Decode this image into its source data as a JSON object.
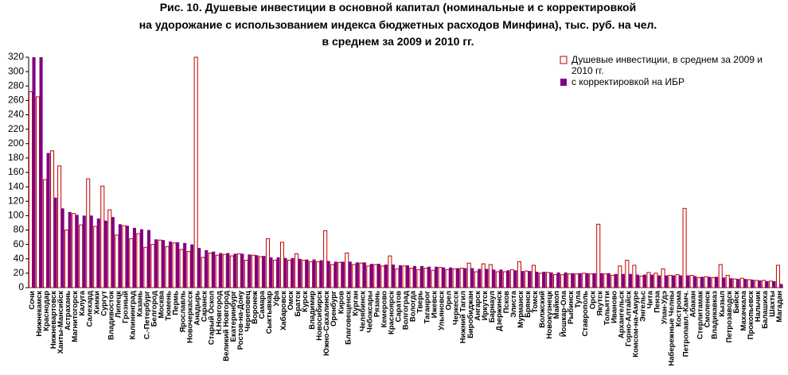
{
  "chart_data": {
    "type": "bar",
    "title": [
      "Рис. 10. Душевые инвестиции в основной капитал (номинальные и с корректировкой",
      "на удорожание с использованием индекса бюджетных расходов Минфина), тыс. руб. на чел.",
      "в среднем за 2009 и 2010 гг."
    ],
    "categories": [
      "Сочи",
      "Нижнекамск",
      "Краснодар",
      "Нижневартовск",
      "Ханты-Мансийск",
      "Астрахань",
      "Магнитогорск",
      "Калуга",
      "Салехард",
      "Химки",
      "Сургут",
      "Владивосток",
      "Липецк",
      "Грозный",
      "Калининград",
      "Казань",
      "С.-Петербург",
      "Белгород",
      "Москва",
      "Тюмень",
      "Пермь",
      "Ярославль",
      "Новочеркасск",
      "Анадырь",
      "Саранск",
      "Старый Оскол",
      "Н.Новгород",
      "Великий Новгород",
      "Екатеринбург",
      "Ростов-на-Дону",
      "Череповец",
      "Воронеж",
      "Самара",
      "Сыктывкар",
      "Уфа",
      "Хабаровск",
      "Омск",
      "Братск",
      "Курск",
      "Владимир",
      "Новосибирск",
      "Южно-Сахалинск",
      "Оренбург",
      "Киров",
      "Благовещенск",
      "Курган",
      "Челябинск",
      "Чебоксары",
      "Рязань",
      "Кемерово",
      "Красноярск",
      "Саратов",
      "Волгоград",
      "Вологда",
      "Тверь",
      "Таганрог",
      "Ижевск",
      "Ульяновск",
      "Орел",
      "Черкесск",
      "Нижний Тагил",
      "Биробиджан",
      "Ангарск",
      "Иркутск",
      "Барнаул",
      "Дзержинск",
      "Псков",
      "Элиста",
      "Мурманск",
      "Брянск",
      "Томск",
      "Волжский",
      "Новокузнецк",
      "Майкоп",
      "Йошкар-Ола",
      "Рыбинск",
      "Тула",
      "Ставрополь",
      "Орск",
      "Якутск",
      "Тольятти",
      "Иваново",
      "Архангельск",
      "Горно-Алтайск",
      "Комсом-на-Амуре",
      "Энгельс",
      "Чита",
      "Пенза",
      "Улан-Удэ",
      "Набережные Челны",
      "Кострома",
      "Петропавл.-Камч.",
      "Абакан",
      "Стерлитамак",
      "Смоленск",
      "Владикавказ",
      "Кызыл",
      "Петрозаводск",
      "Бийск",
      "Махачкала",
      "Прокопьевск",
      "Нальчик",
      "Балашиха",
      "Шахты",
      "Магадан"
    ],
    "series": [
      {
        "name": "Душевые инвестиции, в среднем за 2009 и 2010 гг.",
        "color": "#c00000",
        "outline": true,
        "values": [
          272,
          265,
          150,
          190,
          169,
          80,
          103,
          87,
          151,
          85,
          141,
          108,
          73,
          86,
          68,
          75,
          56,
          60,
          66,
          57,
          62,
          53,
          50,
          320,
          42,
          48,
          45,
          46,
          44,
          47,
          38,
          45,
          43,
          68,
          38,
          63,
          38,
          47,
          38,
          36,
          36,
          79,
          32,
          35,
          48,
          32,
          34,
          30,
          32,
          30,
          44,
          26,
          30,
          27,
          25,
          27,
          24,
          28,
          25,
          26,
          27,
          34,
          22,
          33,
          32,
          22,
          22,
          25,
          36,
          23,
          31,
          20,
          21,
          18,
          18,
          19,
          19,
          20,
          19,
          88,
          19,
          17,
          30,
          38,
          31,
          16,
          21,
          20,
          26,
          17,
          18,
          110,
          17,
          14,
          15,
          14,
          32,
          17,
          12,
          13,
          11,
          10,
          10,
          9,
          31
        ]
      },
      {
        "name": "с корректировкой на ИБР",
        "color": "#800080",
        "outline": false,
        "values": [
          320,
          320,
          187,
          125,
          110,
          105,
          101,
          100,
          100,
          96,
          93,
          98,
          88,
          86,
          83,
          81,
          80,
          67,
          66,
          64,
          63,
          62,
          60,
          55,
          52,
          50,
          48,
          48,
          47,
          47,
          46,
          45,
          44,
          42,
          42,
          41,
          41,
          40,
          39,
          39,
          38,
          37,
          36,
          36,
          36,
          35,
          35,
          33,
          33,
          32,
          32,
          31,
          31,
          30,
          30,
          29,
          29,
          28,
          28,
          27,
          27,
          27,
          26,
          26,
          25,
          25,
          24,
          24,
          23,
          23,
          22,
          22,
          21,
          21,
          21,
          20,
          20,
          20,
          20,
          20,
          20,
          19,
          19,
          19,
          18,
          18,
          18,
          17,
          17,
          17,
          17,
          17,
          16,
          15,
          15,
          15,
          14,
          13,
          12,
          12,
          11,
          10,
          9,
          9,
          5
        ]
      }
    ],
    "ylim": [
      0,
      320
    ],
    "yticks": [
      0,
      20,
      40,
      60,
      80,
      100,
      120,
      140,
      160,
      180,
      200,
      220,
      240,
      260,
      280,
      300,
      320
    ],
    "grid": false
  }
}
